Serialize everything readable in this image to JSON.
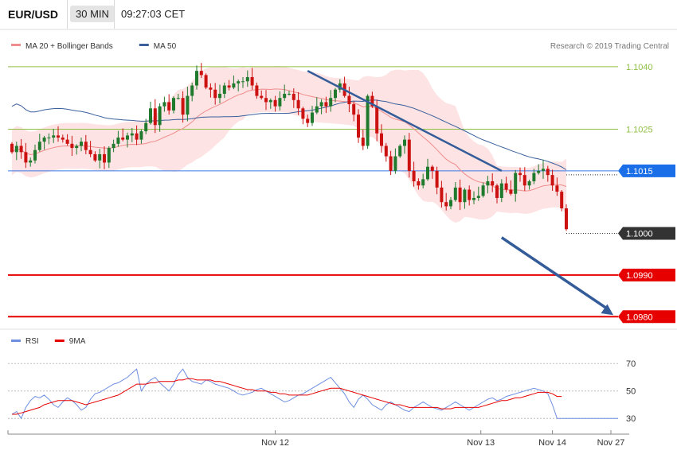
{
  "header": {
    "symbol": "EUR/USD",
    "timeframe": "30 MIN",
    "time": "09:27:03 CET"
  },
  "copyright": "Research © 2019 Trading Central",
  "colors": {
    "bull": "#1f7a2e",
    "bear": "#cc1111",
    "ma20": "#f08c8c",
    "ma50": "#3a5f9c",
    "band_fill": "#fde3e3",
    "resistance": "#8fbf45",
    "pivot": "#3b78e7",
    "support": "#e60000",
    "trend": "#335c99",
    "rsi": "#6e8fe0",
    "rsi_ma": "#e60000"
  },
  "chart_data": [
    {
      "type": "candlestick",
      "title": "",
      "legend": [
        {
          "name": "MA 20 + Bollinger Bands",
          "color": "#f08c8c"
        },
        {
          "name": "MA 50",
          "color": "#3a5f9c"
        }
      ],
      "x_ticks": [
        "Nov 12",
        "Nov 13",
        "Nov 14",
        "Nov 27"
      ],
      "ylim": [
        1.0977,
        1.1048
      ],
      "price_levels": [
        {
          "value": 1.104,
          "label": "1.1040",
          "role": "resistance"
        },
        {
          "value": 1.1025,
          "label": "1.1025",
          "role": "resistance"
        },
        {
          "value": 1.1015,
          "label": "1.1015",
          "role": "pivot"
        },
        {
          "value": 1.1,
          "label": "1.1000",
          "role": "current"
        },
        {
          "value": 1.099,
          "label": "1.0990",
          "role": "support"
        },
        {
          "value": 1.098,
          "label": "1.0980",
          "role": "support"
        }
      ],
      "trendline": {
        "from": [
          64,
          1.1039
        ],
        "to": [
          106,
          1.1015
        ]
      },
      "forecast_arrow": {
        "from": [
          106,
          1.0999
        ],
        "to": [
          118,
          1.098
        ]
      },
      "closes": [
        1.10195,
        1.1021,
        1.10195,
        1.1017,
        1.10175,
        1.102,
        1.1022,
        1.1023,
        1.1023,
        1.10235,
        1.1023,
        1.10225,
        1.10215,
        1.10205,
        1.1021,
        1.1022,
        1.102,
        1.1019,
        1.10175,
        1.1019,
        1.1017,
        1.10205,
        1.10215,
        1.1023,
        1.10225,
        1.10235,
        1.1024,
        1.10225,
        1.10245,
        1.10265,
        1.103,
        1.1026,
        1.10305,
        1.10315,
        1.10295,
        1.10325,
        1.10325,
        1.10285,
        1.1033,
        1.10355,
        1.1039,
        1.1038,
        1.1035,
        1.10345,
        1.10325,
        1.10335,
        1.10355,
        1.1035,
        1.1036,
        1.10365,
        1.10365,
        1.10375,
        1.10355,
        1.1033,
        1.10325,
        1.10315,
        1.1032,
        1.10305,
        1.10325,
        1.10335,
        1.10335,
        1.1032,
        1.103,
        1.10275,
        1.10265,
        1.1029,
        1.10305,
        1.10315,
        1.10305,
        1.10325,
        1.10345,
        1.1036,
        1.1033,
        1.1031,
        1.10285,
        1.1023,
        1.1021,
        1.1033,
        1.10305,
        1.1024,
        1.1021,
        1.10185,
        1.1015,
        1.10185,
        1.1021,
        1.10225,
        1.1015,
        1.10125,
        1.10115,
        1.1013,
        1.1016,
        1.1015,
        1.1011,
        1.10075,
        1.10065,
        1.1008,
        1.1011,
        1.10075,
        1.10105,
        1.1008,
        1.10085,
        1.1009,
        1.10115,
        1.10125,
        1.10115,
        1.10085,
        1.1012,
        1.10105,
        1.10095,
        1.10145,
        1.1014,
        1.10115,
        1.10125,
        1.10145,
        1.1015,
        1.10155,
        1.1014,
        1.10115,
        1.101,
        1.1006,
        1.1001
      ]
    },
    {
      "type": "line",
      "title": "",
      "legend": [
        {
          "name": "RSI",
          "color": "#6e8fe0"
        },
        {
          "name": "9MA",
          "color": "#e60000"
        }
      ],
      "ylim": [
        22,
        80
      ],
      "y_ticks": [
        30,
        50,
        70
      ],
      "series": [
        {
          "name": "RSI",
          "values": [
            33,
            35,
            30,
            38,
            43,
            46,
            45,
            47,
            44,
            40,
            38,
            42,
            45,
            43,
            40,
            36,
            38,
            44,
            48,
            49,
            51,
            53,
            55,
            56,
            58,
            60,
            63,
            66,
            50,
            55,
            58,
            60,
            56,
            53,
            50,
            55,
            62,
            66,
            60,
            57,
            56,
            55,
            58,
            57,
            55,
            54,
            53,
            52,
            50,
            48,
            47,
            48,
            49,
            51,
            52,
            50,
            48,
            46,
            44,
            42,
            43,
            45,
            47,
            48,
            50,
            52,
            54,
            56,
            58,
            60,
            56,
            52,
            48,
            42,
            38,
            44,
            47,
            44,
            40,
            38,
            36,
            40,
            42,
            40,
            38,
            36,
            35,
            38,
            40,
            42,
            40,
            38,
            37,
            36,
            38,
            40,
            42,
            40,
            38,
            36,
            38,
            40,
            42,
            44,
            45,
            43,
            44,
            46,
            47,
            48,
            49,
            50,
            51,
            52,
            51,
            50,
            48,
            40,
            30,
            30
          ]
        },
        {
          "name": "9MA",
          "values": [
            33,
            33,
            34,
            35,
            36,
            37,
            38,
            40,
            41,
            42,
            43,
            43,
            43,
            43,
            42,
            41,
            40,
            41,
            42,
            43,
            44,
            45,
            46,
            47,
            49,
            51,
            53,
            55,
            55,
            55,
            56,
            56,
            57,
            57,
            57,
            57,
            58,
            58,
            59,
            59,
            58,
            58,
            58,
            58,
            57,
            57,
            56,
            55,
            54,
            53,
            52,
            51,
            51,
            50,
            50,
            50,
            49,
            49,
            48,
            48,
            47,
            47,
            47,
            47,
            47,
            48,
            49,
            50,
            51,
            52,
            52,
            52,
            51,
            50,
            49,
            48,
            47,
            46,
            45,
            44,
            43,
            42,
            41,
            40,
            40,
            39,
            38,
            38,
            38,
            38,
            38,
            38,
            38,
            37,
            37,
            37,
            38,
            38,
            38,
            38,
            38,
            38,
            39,
            40,
            41,
            42,
            43,
            43,
            44,
            45,
            45,
            46,
            47,
            48,
            49,
            49,
            49,
            48,
            46,
            46
          ]
        }
      ]
    }
  ]
}
